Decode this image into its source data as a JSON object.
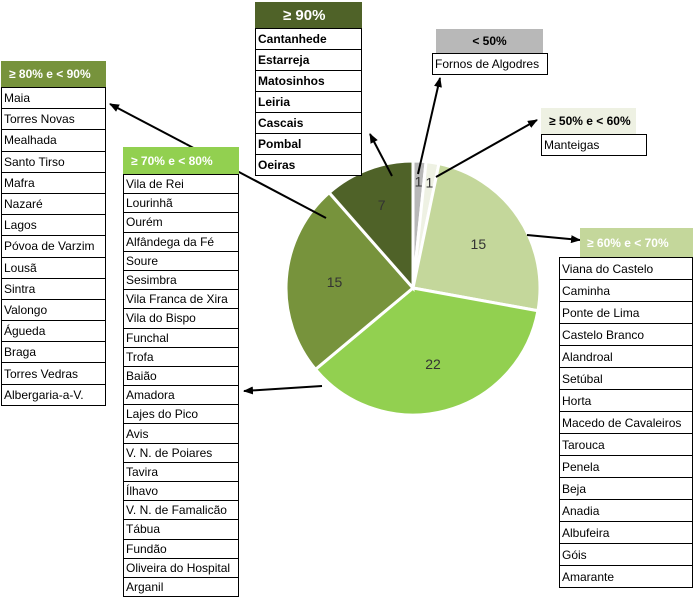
{
  "chart_data": {
    "type": "pie",
    "title": "",
    "slices": [
      {
        "label": "< 50%",
        "value": 1,
        "color": "#b8b8b8"
      },
      {
        "label": "≥ 50% e < 60%",
        "value": 1,
        "color": "#eef1e3"
      },
      {
        "label": "≥ 60% e < 70%",
        "value": 15,
        "color": "#c4d79b"
      },
      {
        "label": "≥ 70% e < 80%",
        "value": 22,
        "color": "#92d050"
      },
      {
        "label": "≥ 80% e < 90%",
        "value": 15,
        "color": "#77933c"
      },
      {
        "label": "≥ 90%",
        "value": 7,
        "color": "#4f6228"
      }
    ],
    "legend": "callouts"
  },
  "groups": {
    "g90": {
      "header": "≥ 90%",
      "header_color": "#4f6228",
      "header_text_color": "#ffffff",
      "items": [
        "Cantanhede",
        "Estarreja",
        "Matosinhos",
        "Leiria",
        "Cascais",
        "Pombal",
        "Oeiras"
      ]
    },
    "g50": {
      "header": "< 50%",
      "header_color": "#b8b8b8",
      "header_text_color": "#000000",
      "items": [
        "Fornos de Algodres"
      ]
    },
    "g5060": {
      "header": "≥ 50% e < 60%",
      "header_color": "#eef1e3",
      "header_text_color": "#000000",
      "items": [
        "Manteigas"
      ]
    },
    "g8090": {
      "header": "≥ 80% e < 90%",
      "header_color": "#77933c",
      "header_text_color": "#ffffff",
      "items": [
        "Maia",
        "Torres Novas",
        "Mealhada",
        "Santo Tirso",
        "Mafra",
        "Nazaré",
        "Lagos",
        "Póvoa de Varzim",
        "Lousã",
        "Sintra",
        "Valongo",
        "Águeda",
        "Braga",
        "Torres Vedras",
        "Albergaria-a-V."
      ]
    },
    "g7080": {
      "header": "≥ 70% e < 80%",
      "header_color": "#92d050",
      "header_text_color": "#ffffff",
      "items": [
        "Vila de Rei",
        "Lourinhã",
        "Ourém",
        "Alfândega da Fé",
        "Soure",
        "Sesimbra",
        "Vila Franca de Xira",
        "Vila do Bispo",
        "Funchal",
        "Trofa",
        "Baião",
        "Amadora",
        "Lajes do Pico",
        "Avis",
        "V. N. de Poiares",
        "Tavira",
        "Ílhavo",
        "V. N. de Famalicão",
        "Tábua",
        "Fundão",
        "Oliveira do Hospital",
        "Arganil"
      ]
    },
    "g6070": {
      "header": "≥ 60% e < 70%",
      "header_color": "#c4d79b",
      "header_text_color": "#ffffff",
      "items": [
        "Viana do Castelo",
        "Caminha",
        "Ponte de Lima",
        "Castelo Branco",
        "Alandroal",
        "Setúbal",
        "Horta",
        "Macedo de Cavaleiros",
        "Tarouca",
        "Penela",
        "Beja",
        "Anadia",
        "Albufeira",
        "Góis",
        "Amarante"
      ]
    }
  }
}
